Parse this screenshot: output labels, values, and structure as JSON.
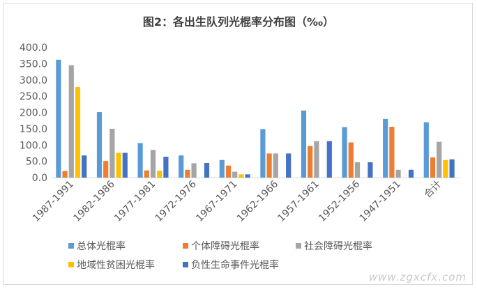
{
  "chart_data": {
    "type": "bar",
    "title": "图2：各出生队列光棍率分布图（‰）",
    "categories": [
      "1987-1991",
      "1982-1986",
      "1977-1981",
      "1972-1976",
      "1967-1971",
      "1962-1966",
      "1957-1961",
      "1952-1956",
      "1947-1951",
      "合计"
    ],
    "series": [
      {
        "name": "总体光棍率",
        "color": "#5B9BD5",
        "values": [
          362,
          201,
          106,
          68,
          54,
          149,
          206,
          155,
          180,
          170
        ]
      },
      {
        "name": "个体障碍光棍率",
        "color": "#ED7D31",
        "values": [
          20,
          51,
          22,
          24,
          37,
          74,
          97,
          108,
          156,
          62
        ]
      },
      {
        "name": "社会障碍光棍率",
        "color": "#A5A5A5",
        "values": [
          345,
          150,
          85,
          44,
          18,
          74,
          112,
          47,
          24,
          110
        ]
      },
      {
        "name": "地域性贫困光棍率",
        "color": "#FFC000",
        "values": [
          278,
          76,
          21,
          0,
          10,
          0,
          0,
          0,
          0,
          54
        ]
      },
      {
        "name": "负性生命事件光棍率",
        "color": "#4472C4",
        "values": [
          68,
          76,
          64,
          45,
          10,
          74,
          112,
          47,
          24,
          56
        ]
      }
    ],
    "yticks": [
      "0.0",
      "50.0",
      "100.0",
      "150.0",
      "200.0",
      "250.0",
      "300.0",
      "350.0",
      "400.0"
    ],
    "ylim": [
      0,
      400
    ],
    "grid": false,
    "legend_position": "bottom",
    "xlabel": "",
    "ylabel": ""
  },
  "watermark": "www.zgxcfx.com"
}
